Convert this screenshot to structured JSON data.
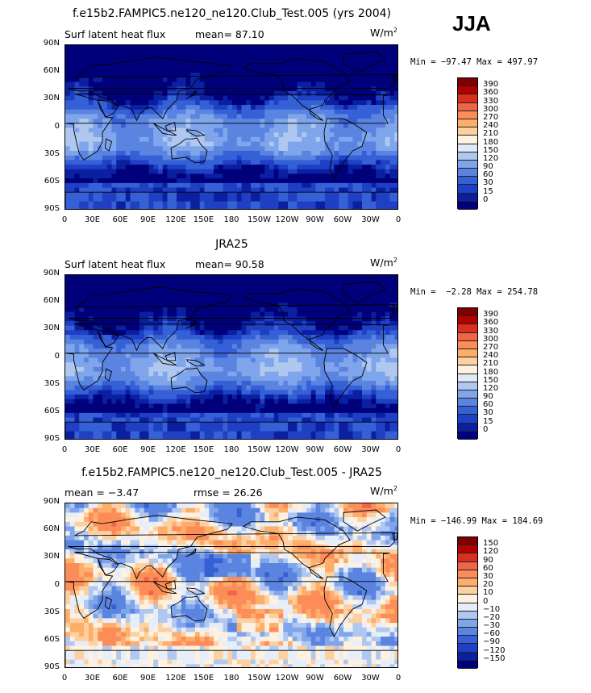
{
  "header": {
    "season": "JJA"
  },
  "panels": [
    {
      "title": "f.e15b2.FAMPIC5.ne120_ne120.Club_Test.005 (yrs 2004)",
      "left_label": "Surf latent heat flux",
      "stat_label": "mean=",
      "stat_value": "87.10",
      "units": "W/m",
      "units_sup": "2",
      "minmax": "Min = −97.47 Max = 497.97"
    },
    {
      "title": "JRA25",
      "left_label": "Surf latent heat flux",
      "stat_label": "mean=",
      "stat_value": "90.58",
      "units": "W/m",
      "units_sup": "2",
      "minmax": "Min =  −2.28 Max = 254.78"
    },
    {
      "title": "f.e15b2.FAMPIC5.ne120_ne120.Club_Test.005 - JRA25",
      "left_label": "mean =  −3.47",
      "stat_label": "rmse =",
      "stat_value": "26.26",
      "units": "W/m",
      "units_sup": "2",
      "minmax": "Min = −146.99 Max = 184.69"
    }
  ],
  "axes": {
    "y_ticks": [
      "90N",
      "60N",
      "30N",
      "0",
      "30S",
      "60S",
      "90S"
    ],
    "x_ticks": [
      "0",
      "30E",
      "60E",
      "90E",
      "120E",
      "150E",
      "180",
      "150W",
      "120W",
      "90W",
      "60W",
      "30W",
      "0"
    ]
  },
  "colorbars": {
    "flux": {
      "labels": [
        "390",
        "360",
        "330",
        "300",
        "270",
        "240",
        "210",
        "180",
        "150",
        "120",
        "90",
        "60",
        "30",
        "15",
        "0"
      ],
      "colors": [
        "#7f0000",
        "#b30000",
        "#d7301f",
        "#ef6548",
        "#fc8d59",
        "#fdae6b",
        "#fdd0a2",
        "#fff1e0",
        "#deebf7",
        "#b0c8f0",
        "#7fa5eb",
        "#5a84e0",
        "#3560d6",
        "#1f3fc4",
        "#0a20a0",
        "#00007a"
      ]
    },
    "diff": {
      "labels": [
        "150",
        "120",
        "90",
        "60",
        "30",
        "20",
        "10",
        "0",
        "−10",
        "−20",
        "−30",
        "−60",
        "−90",
        "−120",
        "−150"
      ],
      "colors": [
        "#7f0000",
        "#b30000",
        "#d7301f",
        "#ef6548",
        "#fc8d59",
        "#fdae6b",
        "#fdd0a2",
        "#fff1e0",
        "#e6eefa",
        "#b0c8f0",
        "#7fa5eb",
        "#5a84e0",
        "#3560d6",
        "#1f3fc4",
        "#0a20a0",
        "#00007a"
      ]
    }
  },
  "chart_data": [
    {
      "type": "heatmap",
      "title": "f.e15b2.FAMPIC5.ne120_ne120.Club_Test.005 (yrs 2004)",
      "variable": "Surf latent heat flux",
      "units": "W/m2",
      "mean": 87.1,
      "min": -97.47,
      "max": 497.97,
      "contour_levels": [
        0,
        15,
        30,
        60,
        90,
        120,
        150,
        180,
        210,
        240,
        270,
        300,
        330,
        360,
        390
      ],
      "xlim": [
        0,
        360
      ],
      "ylim": [
        -90,
        90
      ]
    },
    {
      "type": "heatmap",
      "title": "JRA25",
      "variable": "Surf latent heat flux",
      "units": "W/m2",
      "mean": 90.58,
      "min": -2.28,
      "max": 254.78,
      "contour_levels": [
        0,
        15,
        30,
        60,
        90,
        120,
        150,
        180,
        210,
        240,
        270,
        300,
        330,
        360,
        390
      ],
      "xlim": [
        0,
        360
      ],
      "ylim": [
        -90,
        90
      ]
    },
    {
      "type": "heatmap",
      "title": "f.e15b2.FAMPIC5.ne120_ne120.Club_Test.005 - JRA25",
      "units": "W/m2",
      "mean": -3.47,
      "rmse": 26.26,
      "min": -146.99,
      "max": 184.69,
      "contour_levels": [
        -150,
        -120,
        -90,
        -60,
        -30,
        -20,
        -10,
        0,
        10,
        20,
        30,
        60,
        90,
        120,
        150
      ],
      "xlim": [
        0,
        360
      ],
      "ylim": [
        -90,
        90
      ]
    }
  ]
}
